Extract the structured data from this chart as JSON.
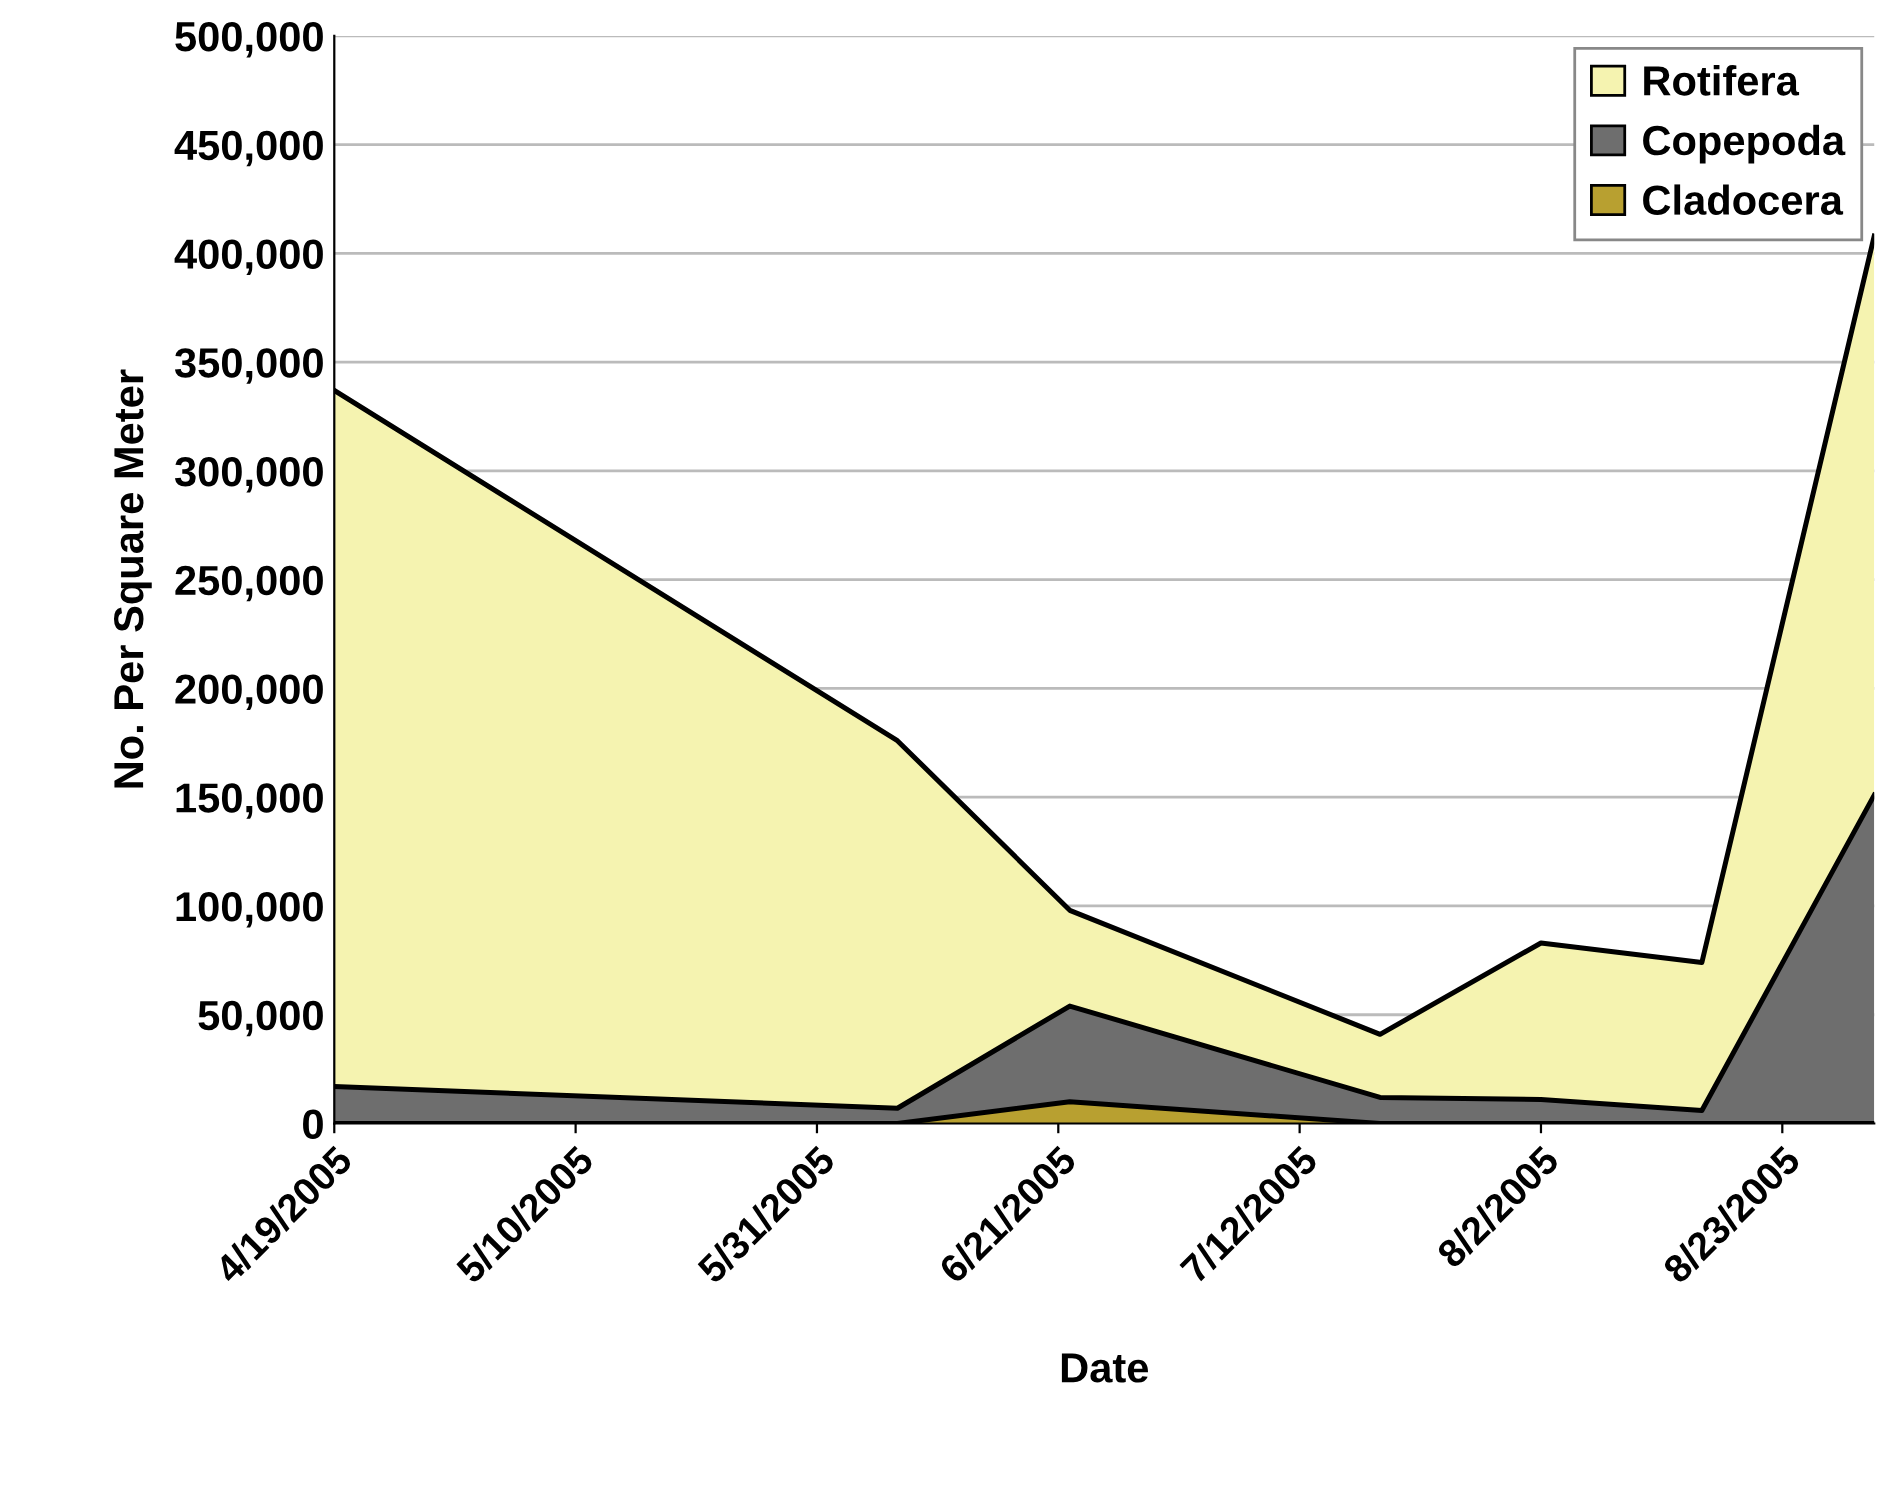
{
  "chart_data": {
    "type": "area",
    "stacked": true,
    "xlabel": "Date",
    "ylabel": "No. Per Square Meter",
    "x": [
      "2005-04-19",
      "2005-06-07",
      "2005-06-22",
      "2005-07-19",
      "2005-08-02",
      "2005-08-16",
      "2005-08-31"
    ],
    "series": [
      {
        "name": "Cladocera",
        "color": "#b8a030",
        "values": [
          0,
          0,
          10000,
          0,
          0,
          0,
          0
        ]
      },
      {
        "name": "Copepoda",
        "color": "#6e6e6e",
        "values": [
          17000,
          7000,
          44000,
          12000,
          11000,
          6000,
          151000
        ]
      },
      {
        "name": "Rotifera",
        "color": "#f5f3b0",
        "values": [
          320000,
          169000,
          44000,
          29000,
          72000,
          68000,
          257000
        ]
      }
    ],
    "xlim": [
      "2005-04-19",
      "2005-08-31"
    ],
    "xticks": [
      {
        "value": "2005-04-19",
        "label": "4/19/2005"
      },
      {
        "value": "2005-05-10",
        "label": "5/10/2005"
      },
      {
        "value": "2005-05-31",
        "label": "5/31/2005"
      },
      {
        "value": "2005-06-21",
        "label": "6/21/2005"
      },
      {
        "value": "2005-07-12",
        "label": "7/12/2005"
      },
      {
        "value": "2005-08-02",
        "label": "8/2/2005"
      },
      {
        "value": "2005-08-23",
        "label": "8/23/2005"
      }
    ],
    "ylim": [
      0,
      500000
    ],
    "yticks": [
      {
        "value": 0,
        "label": "0"
      },
      {
        "value": 50000,
        "label": "50,000"
      },
      {
        "value": 100000,
        "label": "100,000"
      },
      {
        "value": 150000,
        "label": "150,000"
      },
      {
        "value": 200000,
        "label": "200,000"
      },
      {
        "value": 250000,
        "label": "250,000"
      },
      {
        "value": 300000,
        "label": "300,000"
      },
      {
        "value": 350000,
        "label": "350,000"
      },
      {
        "value": 400000,
        "label": "400,000"
      },
      {
        "value": 450000,
        "label": "450,000"
      },
      {
        "value": 500000,
        "label": "500,000"
      }
    ],
    "grid": "y",
    "legend": "top right"
  }
}
